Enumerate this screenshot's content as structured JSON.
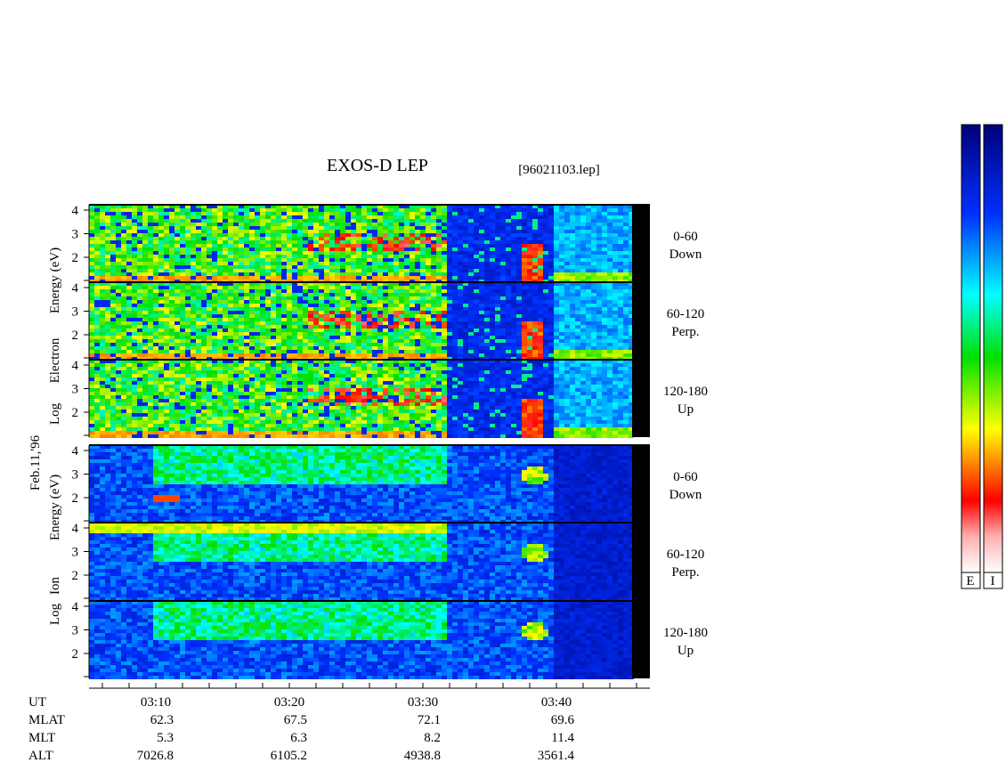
{
  "title": "EXOS-D LEP",
  "file": "[96021103.lep]",
  "date": "Feb.11,'96",
  "groups": [
    {
      "label": [
        "Log",
        "Electron",
        "Energy (eV)"
      ],
      "panels": [
        {
          "yticks": [
            "4",
            "3",
            "2"
          ],
          "channel": [
            "0-60",
            "Down"
          ]
        },
        {
          "yticks": [
            "4",
            "3",
            "2"
          ],
          "channel": [
            "60-120",
            "Perp."
          ]
        },
        {
          "yticks": [
            "4",
            "3",
            "2"
          ],
          "channel": [
            "120-180",
            "Up"
          ]
        }
      ]
    },
    {
      "label": [
        "Log",
        "Ion",
        "Energy (eV)"
      ],
      "panels": [
        {
          "yticks": [
            "4",
            "3",
            "2"
          ],
          "channel": [
            "0-60",
            "Down"
          ]
        },
        {
          "yticks": [
            "4",
            "3",
            "2"
          ],
          "channel": [
            "60-120",
            "Perp."
          ]
        },
        {
          "yticks": [
            "4",
            "3",
            "2"
          ],
          "channel": [
            "120-180",
            "Up"
          ]
        }
      ]
    }
  ],
  "orbit": {
    "labels": [
      "UT",
      "MLAT",
      "MLT",
      "ALT"
    ],
    "columns": [
      [
        "03:10",
        "62.3",
        "5.3",
        "7026.8"
      ],
      [
        "03:20",
        "67.5",
        "6.3",
        "6105.2"
      ],
      [
        "03:30",
        "72.1",
        "8.2",
        "4938.8"
      ],
      [
        "03:40",
        "69.6",
        "11.4",
        "3561.4"
      ]
    ]
  },
  "colorbar": {
    "labels": [
      "E",
      "I"
    ]
  }
}
